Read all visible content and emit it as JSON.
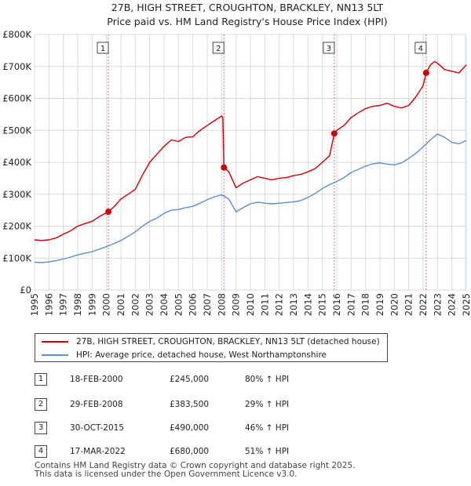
{
  "title_line1": "27B, HIGH STREET, CROUGHTON, BRACKLEY, NN13 5LT",
  "title_line2": "Price paid vs. HM Land Registry's House Price Index (HPI)",
  "colors": {
    "property": "#cc0000",
    "hpi": "#5b8fd0",
    "shade": "#dde8f6",
    "grid": "#d9d9d9",
    "marker_line": "#e07070"
  },
  "chart_data": {
    "type": "line",
    "x_range": [
      1995,
      2025
    ],
    "y_range": [
      0,
      800000
    ],
    "x_ticks": [
      1995,
      1996,
      1997,
      1998,
      1999,
      2000,
      2001,
      2002,
      2003,
      2004,
      2005,
      2006,
      2007,
      2008,
      2009,
      2010,
      2011,
      2012,
      2013,
      2014,
      2015,
      2016,
      2017,
      2018,
      2019,
      2020,
      2021,
      2022,
      2023,
      2024,
      2025
    ],
    "y_ticks": [
      {
        "value": 0,
        "label": "£0"
      },
      {
        "value": 100000,
        "label": "£100K"
      },
      {
        "value": 200000,
        "label": "£200K"
      },
      {
        "value": 300000,
        "label": "£300K"
      },
      {
        "value": 400000,
        "label": "£400K"
      },
      {
        "value": 500000,
        "label": "£500K"
      },
      {
        "value": 600000,
        "label": "£600K"
      },
      {
        "value": 700000,
        "label": "£700K"
      },
      {
        "value": 800000,
        "label": "£800K"
      }
    ],
    "series": [
      {
        "name": "property",
        "x": [
          1995.0,
          1995.5,
          1996.0,
          1996.5,
          1997.0,
          1997.5,
          1998.0,
          1998.5,
          1999.0,
          1999.5,
          2000.13,
          2000.5,
          2001.0,
          2001.5,
          2002.0,
          2002.5,
          2003.0,
          2003.5,
          2004.0,
          2004.5,
          2005.0,
          2005.5,
          2006.0,
          2006.5,
          2007.0,
          2007.5,
          2008.0,
          2008.08,
          2008.16,
          2008.5,
          2009.0,
          2009.5,
          2010.0,
          2010.5,
          2011.0,
          2011.5,
          2012.0,
          2012.5,
          2013.0,
          2013.5,
          2014.0,
          2014.5,
          2015.0,
          2015.5,
          2015.83,
          2016.0,
          2016.5,
          2017.0,
          2017.5,
          2018.0,
          2018.5,
          2019.0,
          2019.5,
          2020.0,
          2020.5,
          2021.0,
          2021.5,
          2022.0,
          2022.21,
          2022.5,
          2022.8,
          2023.0,
          2023.5,
          2024.0,
          2024.5,
          2025.0
        ],
        "y": [
          157000,
          155000,
          157000,
          163000,
          175000,
          185000,
          200000,
          208000,
          215000,
          230000,
          245000,
          260000,
          285000,
          300000,
          315000,
          360000,
          400000,
          425000,
          450000,
          470000,
          465000,
          478000,
          480000,
          500000,
          515000,
          530000,
          545000,
          540000,
          383500,
          370000,
          320000,
          335000,
          345000,
          355000,
          350000,
          345000,
          350000,
          352000,
          358000,
          362000,
          370000,
          380000,
          400000,
          420000,
          490000,
          500000,
          515000,
          540000,
          555000,
          568000,
          575000,
          578000,
          585000,
          575000,
          570000,
          578000,
          605000,
          640000,
          680000,
          705000,
          715000,
          710000,
          690000,
          685000,
          680000,
          705000
        ]
      },
      {
        "name": "hpi",
        "x": [
          1995.0,
          1995.5,
          1996.0,
          1996.5,
          1997.0,
          1997.5,
          1998.0,
          1998.5,
          1999.0,
          1999.5,
          2000.0,
          2000.5,
          2001.0,
          2001.5,
          2002.0,
          2002.5,
          2003.0,
          2003.5,
          2004.0,
          2004.5,
          2005.0,
          2005.5,
          2006.0,
          2006.5,
          2007.0,
          2007.5,
          2008.0,
          2008.5,
          2009.0,
          2009.5,
          2010.0,
          2010.5,
          2011.0,
          2011.5,
          2012.0,
          2012.5,
          2013.0,
          2013.5,
          2014.0,
          2014.5,
          2015.0,
          2015.5,
          2016.0,
          2016.5,
          2017.0,
          2017.5,
          2018.0,
          2018.5,
          2019.0,
          2019.5,
          2020.0,
          2020.5,
          2021.0,
          2021.5,
          2022.0,
          2022.5,
          2023.0,
          2023.5,
          2024.0,
          2024.5,
          2025.0
        ],
        "y": [
          87000,
          86000,
          88000,
          92000,
          97000,
          103000,
          110000,
          115000,
          120000,
          128000,
          136000,
          145000,
          155000,
          168000,
          182000,
          200000,
          215000,
          225000,
          240000,
          250000,
          252000,
          258000,
          262000,
          272000,
          283000,
          292000,
          298000,
          285000,
          245000,
          258000,
          270000,
          275000,
          272000,
          270000,
          272000,
          274000,
          276000,
          280000,
          290000,
          302000,
          318000,
          330000,
          340000,
          352000,
          368000,
          378000,
          388000,
          395000,
          398000,
          394000,
          392000,
          398000,
          412000,
          428000,
          448000,
          470000,
          488000,
          478000,
          462000,
          458000,
          468000
        ]
      }
    ],
    "sales": [
      {
        "num": "1",
        "x": 2000.13,
        "y": 245000
      },
      {
        "num": "2",
        "x": 2008.16,
        "y": 383500
      },
      {
        "num": "3",
        "x": 2015.83,
        "y": 490000
      },
      {
        "num": "4",
        "x": 2022.21,
        "y": 680000
      }
    ],
    "shaded_regions": [
      [
        2024.9,
        2025.0
      ]
    ]
  },
  "legend": {
    "property_label": "27B, HIGH STREET, CROUGHTON, BRACKLEY, NN13 5LT (detached house)",
    "hpi_label": "HPI: Average price, detached house, West Northamptonshire"
  },
  "sales_table": [
    {
      "num": "1",
      "date": "18-FEB-2000",
      "price": "£245,000",
      "hpi": "80% ↑ HPI"
    },
    {
      "num": "2",
      "date": "29-FEB-2008",
      "price": "£383,500",
      "hpi": "29% ↑ HPI"
    },
    {
      "num": "3",
      "date": "30-OCT-2015",
      "price": "£490,000",
      "hpi": "46% ↑ HPI"
    },
    {
      "num": "4",
      "date": "17-MAR-2022",
      "price": "£680,000",
      "hpi": "51% ↑ HPI"
    }
  ],
  "footer": {
    "line1": "Contains HM Land Registry data © Crown copyright and database right 2025.",
    "line2": "This data is licensed under the Open Government Licence v3.0."
  }
}
